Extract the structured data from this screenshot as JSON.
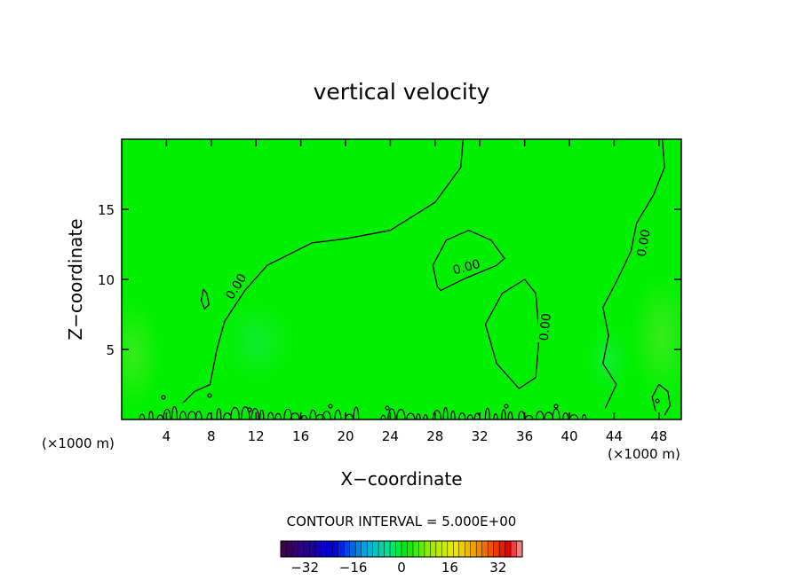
{
  "chart_data": {
    "type": "contour",
    "title": "vertical velocity",
    "xlabel": "X−coordinate",
    "ylabel": "Z−coordinate",
    "x_unit_left": "(×1000 m)",
    "x_unit_right": "(×1000 m)",
    "xlim": [
      0,
      50
    ],
    "ylim": [
      0,
      20
    ],
    "x_ticks": [
      4,
      8,
      12,
      16,
      20,
      24,
      28,
      32,
      36,
      40,
      44,
      48
    ],
    "y_ticks": [
      5,
      10,
      15
    ],
    "contour_label": "0.00",
    "contour_interval_text": "CONTOUR INTERVAL = 5.000E+00",
    "colorbar": {
      "min": -40,
      "max": 40,
      "ticks": [
        -32,
        -16,
        0,
        16,
        32
      ],
      "tick_labels": [
        "−32",
        "−16",
        "0",
        "16",
        "32"
      ]
    },
    "field_color": "#00f000",
    "contours": [
      {
        "label": "0.00",
        "points": [
          [
            30.5,
            20
          ],
          [
            30.3,
            18
          ],
          [
            28,
            15.5
          ],
          [
            24,
            13.5
          ],
          [
            20,
            12.9
          ],
          [
            17,
            12.6
          ],
          [
            13,
            11
          ],
          [
            11,
            9.2
          ],
          [
            9.2,
            7
          ],
          [
            8.5,
            5
          ],
          [
            7.9,
            2.5
          ],
          [
            6.5,
            2
          ],
          [
            5.5,
            1.2
          ]
        ]
      },
      {
        "label": "0.00",
        "points": [
          [
            28.2,
            9.5
          ],
          [
            27.8,
            11
          ],
          [
            29,
            12.8
          ],
          [
            31,
            13.5
          ],
          [
            33,
            12.8
          ],
          [
            34.2,
            11.5
          ],
          [
            33.5,
            11
          ],
          [
            30.5,
            10
          ],
          [
            28.5,
            9.2
          ],
          [
            28.2,
            9.5
          ]
        ]
      },
      {
        "label": "0.00",
        "points": [
          [
            36,
            10
          ],
          [
            34,
            9
          ],
          [
            32.5,
            6.8
          ],
          [
            33.5,
            4
          ],
          [
            35.5,
            2.2
          ],
          [
            37,
            3
          ],
          [
            37.3,
            6
          ],
          [
            37,
            9
          ],
          [
            36,
            10
          ]
        ]
      },
      {
        "label": "0.00",
        "points": [
          [
            48.3,
            20
          ],
          [
            48.5,
            18
          ],
          [
            47.5,
            16
          ],
          [
            46,
            14
          ],
          [
            45.5,
            12
          ],
          [
            44.3,
            10
          ],
          [
            43,
            8
          ],
          [
            43.5,
            6
          ],
          [
            43,
            4
          ],
          [
            44.2,
            2.5
          ],
          [
            43.2,
            0.8
          ]
        ]
      },
      {
        "label": "",
        "points": [
          [
            7.3,
            9.3
          ],
          [
            7.6,
            9
          ],
          [
            7.8,
            8.2
          ],
          [
            7.4,
            7.9
          ],
          [
            7.1,
            8.5
          ],
          [
            7.3,
            9.3
          ]
        ]
      },
      {
        "label": "",
        "points": [
          [
            47.7,
            0.6
          ],
          [
            47.4,
            1.6
          ],
          [
            48,
            2.5
          ],
          [
            48.8,
            2
          ],
          [
            49,
            1
          ],
          [
            48.5,
            0.3
          ]
        ]
      }
    ]
  }
}
